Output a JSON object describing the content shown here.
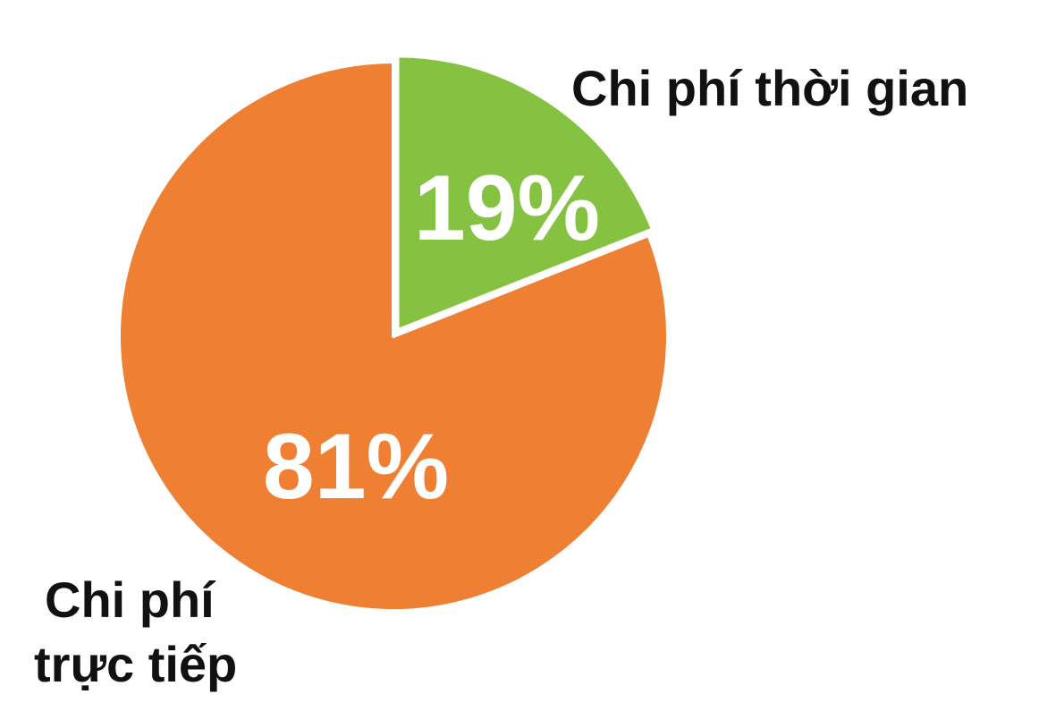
{
  "chart_data": {
    "type": "pie",
    "slices": [
      {
        "label": "Chi phí thời gian",
        "value": 19,
        "display": "19%",
        "color": "#86c241"
      },
      {
        "label_lines": [
          "Chi phí",
          "trực tiếp"
        ],
        "value": 81,
        "display": "81%",
        "color": "#ee7f33"
      }
    ],
    "start_angle_deg": 0,
    "direction": "clockwise",
    "separator_color": "#ffffff"
  }
}
